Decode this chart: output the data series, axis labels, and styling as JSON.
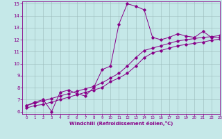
{
  "xlabel": "Windchill (Refroidissement éolien,°C)",
  "xlim": [
    -0.5,
    23
  ],
  "ylim": [
    5.8,
    15.2
  ],
  "xticks": [
    0,
    1,
    2,
    3,
    4,
    5,
    6,
    7,
    8,
    9,
    10,
    11,
    12,
    13,
    14,
    15,
    16,
    17,
    18,
    19,
    20,
    21,
    22,
    23
  ],
  "yticks": [
    6,
    7,
    8,
    9,
    10,
    11,
    12,
    13,
    14,
    15
  ],
  "bg_color": "#c5e8e8",
  "line_color": "#880088",
  "grid_color": "#9bbaba",
  "line1_x": [
    0,
    1,
    2,
    3,
    4,
    5,
    6,
    7,
    8,
    9,
    10,
    11,
    12,
    13,
    14,
    15,
    16,
    17,
    18,
    19,
    20,
    21,
    22,
    23
  ],
  "line1_y": [
    6.5,
    6.8,
    7.0,
    6.0,
    7.6,
    7.8,
    7.5,
    7.3,
    8.0,
    9.5,
    9.8,
    13.3,
    15.0,
    14.8,
    14.5,
    12.2,
    12.0,
    12.2,
    12.5,
    12.3,
    12.2,
    12.7,
    12.2,
    12.2
  ],
  "line2_x": [
    0,
    1,
    2,
    3,
    4,
    5,
    6,
    7,
    8,
    9,
    10,
    11,
    12,
    13,
    14,
    15,
    16,
    17,
    18,
    19,
    20,
    21,
    22,
    23
  ],
  "line2_y": [
    6.3,
    6.5,
    6.6,
    6.8,
    7.0,
    7.2,
    7.4,
    7.6,
    7.8,
    8.0,
    8.5,
    8.8,
    9.2,
    9.8,
    10.5,
    10.9,
    11.1,
    11.3,
    11.5,
    11.6,
    11.7,
    11.8,
    11.95,
    12.05
  ],
  "line3_x": [
    0,
    1,
    2,
    3,
    4,
    5,
    6,
    7,
    8,
    9,
    10,
    11,
    12,
    13,
    14,
    15,
    16,
    17,
    18,
    19,
    20,
    21,
    22,
    23
  ],
  "line3_y": [
    6.5,
    6.7,
    6.9,
    7.1,
    7.3,
    7.5,
    7.7,
    7.9,
    8.1,
    8.4,
    8.8,
    9.2,
    9.8,
    10.5,
    11.1,
    11.3,
    11.5,
    11.7,
    11.9,
    12.0,
    12.1,
    12.2,
    12.25,
    12.35
  ]
}
